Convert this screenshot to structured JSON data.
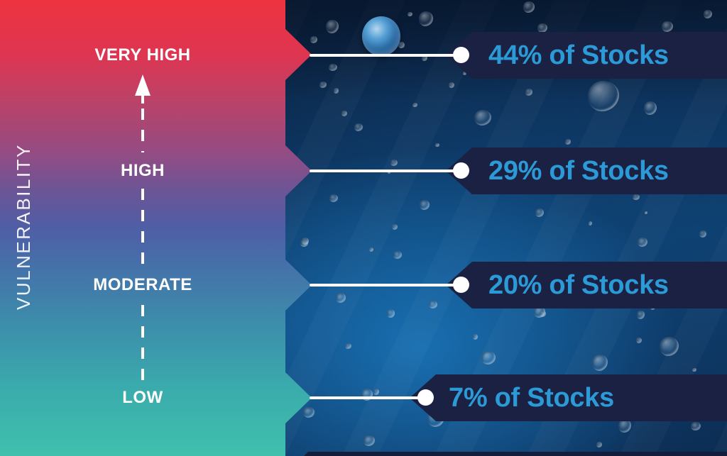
{
  "colors": {
    "accent_text": "#2B9AD7",
    "banner_bg": "#1A2142",
    "gradient_top": "#EE3340",
    "gradient_bottom": "#40C0AD"
  },
  "y_axis": {
    "title": "VULNERABILITY"
  },
  "levels": [
    {
      "label": "VERY HIGH",
      "value": "44% of Stocks"
    },
    {
      "label": "HIGH",
      "value": "29% of Stocks"
    },
    {
      "label": "MODERATE",
      "value": "20% of Stocks"
    },
    {
      "label": "LOW",
      "value": "7% of Stocks"
    }
  ],
  "chart_data": {
    "type": "table",
    "title": "",
    "ylabel": "VULNERABILITY",
    "categories": [
      "VERY HIGH",
      "HIGH",
      "MODERATE",
      "LOW"
    ],
    "values": [
      44,
      29,
      20,
      7
    ],
    "unit": "% of Stocks",
    "value_labels": [
      "44% of Stocks",
      "29% of Stocks",
      "20% of Stocks",
      "7% of Stocks"
    ],
    "legend": false,
    "axis_direction": "increasing-upward"
  }
}
